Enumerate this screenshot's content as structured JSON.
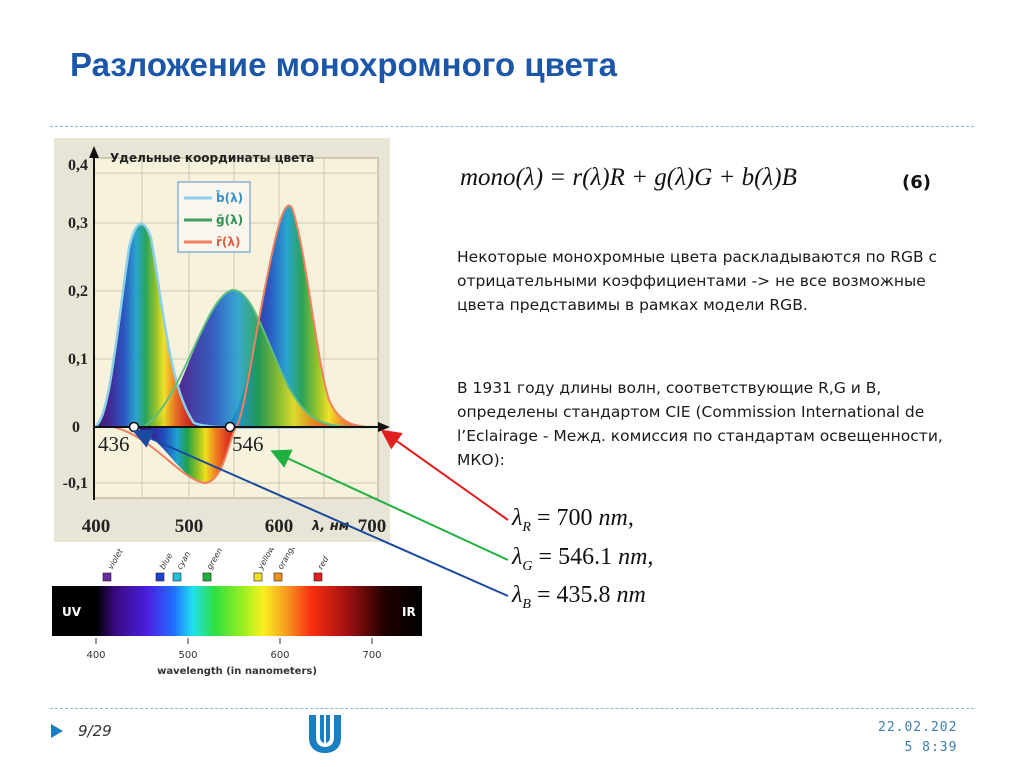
{
  "slide": {
    "title": "Разложение монохромного цвета",
    "formula": "mono(λ) = r(λ)R + g(λ)G + b(λ)B",
    "equation_number": "(6)",
    "paragraph1": "Некоторые монохромные цвета раскладываются по RGB с отрицательными коэффициентами -> не все возможные цвета представимы в рамках модели RGB.",
    "paragraph2": "В 1931 году длины волн, соответствующие R,G и B, определены стандартом CIE (Commission International de l’Eclairage - Межд. комиссия по стандартам освещенности, МКО):",
    "wavelengths": [
      {
        "symbol": "λ",
        "sub": "R",
        "rest": " = 700 ",
        "unit": "nm",
        "end": ",",
        "color": "#e02020"
      },
      {
        "symbol": "λ",
        "sub": "G",
        "rest": " = 546.1 ",
        "unit": "nm",
        "end": ",",
        "color": "#20b040"
      },
      {
        "symbol": "λ",
        "sub": "B",
        "rest": " = 435.8 ",
        "unit": "nm",
        "end": "",
        "color": "#1a4aa0"
      }
    ]
  },
  "graph": {
    "title": "Удельные координаты цвета",
    "y_ticks": [
      "0,4",
      "0,3",
      "0,2",
      "0,1",
      "0",
      "-0,1"
    ],
    "x_ticks": [
      "400",
      "500",
      "600",
      "700"
    ],
    "x_unit": "λ, нм",
    "legend": [
      "b̄(λ)",
      "ḡ(λ)",
      "r̄(λ)"
    ],
    "markers": [
      "436",
      "546"
    ]
  },
  "spectrum": {
    "labels": [
      "violet",
      "blue",
      "cyan",
      "green",
      "yellow",
      "orange",
      "red"
    ],
    "label_colors": [
      "#6a2aa0",
      "#2040d0",
      "#20c0e0",
      "#20b040",
      "#f0e020",
      "#f09020",
      "#e02020"
    ],
    "uv": "UV",
    "ir": "IR",
    "ticks": [
      "400",
      "500",
      "600",
      "700"
    ],
    "axis_label": "wavelength (in nanometers)"
  },
  "footer": {
    "page": "9/29",
    "date_line1": "22.02.202",
    "date_line2": "5 8:39"
  },
  "colors": {
    "title": "#1b56a8",
    "accent": "#1a7fc0"
  }
}
